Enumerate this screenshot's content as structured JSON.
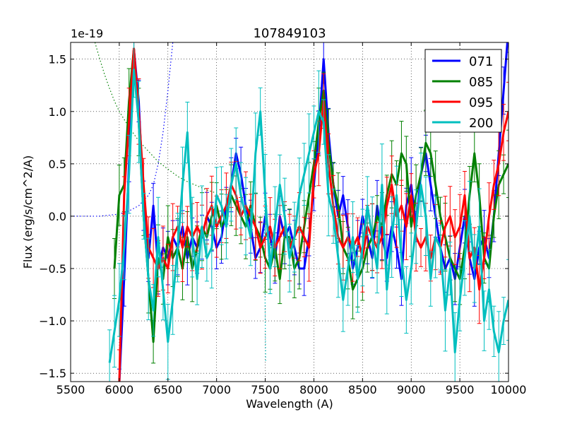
{
  "chart_data": {
    "type": "line",
    "title": "107849103",
    "xlabel": "Wavelength (A)",
    "ylabel": "Flux (erg/s/cm^2/A)",
    "offset_label": "1e-19",
    "xlim": [
      5500,
      10000
    ],
    "ylim": [
      -1.58,
      1.66
    ],
    "xticks": [
      5500,
      6000,
      6500,
      7000,
      7500,
      8000,
      8500,
      9000,
      9500,
      10000
    ],
    "yticks": [
      -1.5,
      -1.0,
      -0.5,
      0.0,
      0.5,
      1.0,
      1.5
    ],
    "xtick_labels": [
      "5500",
      "6000",
      "6500",
      "7000",
      "7500",
      "8000",
      "8500",
      "9000",
      "9500",
      "10000"
    ],
    "ytick_labels": [
      "−1.5",
      "−1.0",
      "−0.5",
      "0.0",
      "0.5",
      "1.0",
      "1.5"
    ],
    "grid": true,
    "legend_position": "top-right",
    "series": [
      {
        "name": "071",
        "color": "#0000ff",
        "x": [
          6000,
          6050,
          6100,
          6150,
          6200,
          6250,
          6300,
          6350,
          6400,
          6450,
          6500,
          6550,
          6600,
          6650,
          6700,
          6750,
          6800,
          6850,
          6900,
          6950,
          7000,
          7050,
          7100,
          7150,
          7200,
          7250,
          7300,
          7350,
          7400,
          7450,
          7500,
          7550,
          7600,
          7650,
          7700,
          7750,
          7800,
          7850,
          7900,
          7950,
          8000,
          8050,
          8100,
          8150,
          8200,
          8250,
          8300,
          8350,
          8400,
          8450,
          8500,
          8550,
          8600,
          8650,
          8700,
          8750,
          8800,
          8850,
          8900,
          8950,
          9000,
          9050,
          9100,
          9150,
          9200,
          9250,
          9300,
          9350,
          9400,
          9450,
          9500,
          9550,
          9600,
          9650,
          9700,
          9750,
          9800,
          9850,
          9900,
          9950,
          10000
        ],
        "y": [
          -1.6,
          -0.6,
          0.5,
          1.6,
          1.1,
          0.1,
          -0.4,
          0.1,
          -0.5,
          -0.3,
          -0.4,
          -0.2,
          -0.3,
          -0.1,
          -0.4,
          -0.2,
          -0.3,
          -0.2,
          0.0,
          -0.1,
          -0.3,
          -0.2,
          0.1,
          0.3,
          0.6,
          0.4,
          0.1,
          -0.1,
          -0.4,
          -0.3,
          0.0,
          -0.2,
          -0.4,
          0.0,
          -0.2,
          -0.1,
          -0.3,
          -0.5,
          -0.5,
          -0.2,
          0.3,
          0.8,
          1.5,
          0.8,
          0.3,
          0.0,
          0.2,
          -0.1,
          -0.5,
          -0.3,
          0.0,
          -0.2,
          -0.4,
          0.1,
          -0.2,
          -0.4,
          -0.1,
          -0.3,
          -0.6,
          0.1,
          0.3,
          -0.1,
          0.4,
          0.6,
          0.3,
          0.0,
          -0.3,
          -0.5,
          -0.4,
          -0.6,
          -0.3,
          0.0,
          -0.4,
          -0.6,
          -0.3,
          -0.2,
          -0.4,
          0.0,
          0.6,
          1.2,
          1.8
        ],
        "err": 0.2
      },
      {
        "name": "085",
        "color": "#008000",
        "x": [
          5950,
          6000,
          6050,
          6100,
          6150,
          6200,
          6250,
          6300,
          6350,
          6400,
          6450,
          6500,
          6550,
          6600,
          6650,
          6700,
          6750,
          6800,
          6850,
          6900,
          6950,
          7000,
          7050,
          7100,
          7150,
          7200,
          7250,
          7300,
          7350,
          7400,
          7450,
          7500,
          7550,
          7600,
          7650,
          7700,
          7750,
          7800,
          7850,
          7900,
          7950,
          8000,
          8050,
          8100,
          8150,
          8200,
          8250,
          8300,
          8350,
          8400,
          8450,
          8500,
          8550,
          8600,
          8650,
          8700,
          8750,
          8800,
          8850,
          8900,
          8950,
          9000,
          9050,
          9100,
          9150,
          9200,
          9250,
          9300,
          9350,
          9400,
          9450,
          9500,
          9550,
          9600,
          9650,
          9700,
          9750,
          9800,
          9850,
          9900,
          9950,
          10000
        ],
        "y": [
          -0.5,
          0.2,
          0.3,
          1.1,
          1.6,
          0.9,
          0.0,
          -0.6,
          -1.2,
          -0.4,
          -0.6,
          -0.2,
          -0.4,
          -0.3,
          -0.5,
          -0.2,
          -0.5,
          -0.3,
          -0.1,
          -0.2,
          0.0,
          0.1,
          -0.1,
          0.0,
          0.2,
          0.1,
          0.0,
          -0.1,
          0.1,
          -0.1,
          -0.2,
          -0.4,
          -0.5,
          -0.3,
          -0.6,
          -0.2,
          -0.2,
          -0.5,
          -0.4,
          -0.1,
          0.2,
          0.5,
          0.9,
          1.2,
          0.7,
          0.3,
          0.1,
          -0.3,
          -0.4,
          -0.7,
          -0.6,
          -0.5,
          -0.3,
          -0.2,
          0.0,
          -0.1,
          0.2,
          0.4,
          0.3,
          0.6,
          0.5,
          -0.1,
          0.2,
          0.4,
          0.7,
          0.6,
          0.3,
          0.0,
          -0.2,
          -0.4,
          -0.5,
          -0.6,
          -0.3,
          0.2,
          0.6,
          0.2,
          -0.4,
          -0.5,
          0.0,
          0.3,
          0.4,
          0.5
        ],
        "err": 0.25
      },
      {
        "name": "095",
        "color": "#ff0000",
        "x": [
          6000,
          6050,
          6100,
          6150,
          6200,
          6250,
          6300,
          6350,
          6400,
          6450,
          6500,
          6550,
          6600,
          6650,
          6700,
          6750,
          6800,
          6850,
          6900,
          6950,
          7000,
          7050,
          7100,
          7150,
          7200,
          7250,
          7300,
          7350,
          7400,
          7450,
          7500,
          7550,
          7600,
          7650,
          7700,
          7750,
          7800,
          7850,
          7900,
          7950,
          8000,
          8050,
          8100,
          8150,
          8200,
          8250,
          8300,
          8350,
          8400,
          8450,
          8500,
          8550,
          8600,
          8650,
          8700,
          8750,
          8800,
          8850,
          8900,
          8950,
          9000,
          9050,
          9100,
          9150,
          9200,
          9250,
          9300,
          9350,
          9400,
          9450,
          9500,
          9550,
          9600,
          9650,
          9700,
          9750,
          9800,
          9850,
          9900,
          9950,
          10000
        ],
        "y": [
          -1.6,
          0.2,
          0.9,
          1.6,
          1.0,
          0.3,
          -0.3,
          -0.4,
          -0.5,
          -0.4,
          -0.5,
          -0.2,
          -0.1,
          -0.3,
          -0.1,
          -0.2,
          -0.1,
          -0.2,
          0.0,
          0.1,
          -0.1,
          0.0,
          0.1,
          0.3,
          0.2,
          0.0,
          0.1,
          0.0,
          -0.1,
          -0.3,
          -0.2,
          -0.1,
          -0.3,
          -0.2,
          -0.1,
          -0.3,
          -0.2,
          -0.1,
          -0.2,
          -0.3,
          0.4,
          0.6,
          1.1,
          0.5,
          0.1,
          -0.2,
          -0.3,
          -0.2,
          -0.3,
          -0.2,
          -0.4,
          -0.1,
          -0.2,
          -0.3,
          -0.2,
          0.1,
          0.3,
          0.0,
          0.1,
          -0.1,
          0.2,
          -0.2,
          -0.3,
          -0.2,
          -0.4,
          -0.2,
          -0.3,
          -0.1,
          0.0,
          -0.2,
          -0.1,
          0.2,
          -0.4,
          -0.3,
          -0.7,
          -0.4,
          0.0,
          0.3,
          0.5,
          0.8,
          1.0
        ],
        "err": 0.25
      },
      {
        "name": "200",
        "color": "#00bfbf",
        "x": [
          5900,
          5950,
          6000,
          6050,
          6100,
          6150,
          6200,
          6250,
          6300,
          6350,
          6400,
          6450,
          6500,
          6550,
          6600,
          6650,
          6700,
          6750,
          6800,
          6850,
          6900,
          6950,
          7000,
          7050,
          7100,
          7150,
          7200,
          7250,
          7300,
          7350,
          7400,
          7450,
          7500,
          7550,
          7600,
          7650,
          7700,
          7750,
          7800,
          7850,
          7900,
          7950,
          8000,
          8050,
          8100,
          8150,
          8200,
          8250,
          8300,
          8350,
          8400,
          8450,
          8500,
          8550,
          8600,
          8650,
          8700,
          8750,
          8800,
          8850,
          8900,
          8950,
          9000,
          9050,
          9100,
          9150,
          9200,
          9250,
          9300,
          9350,
          9400,
          9450,
          9500,
          9550,
          9600,
          9650,
          9700,
          9750,
          9800,
          9850,
          9900,
          9950,
          10000
        ],
        "y": [
          -1.4,
          -1.1,
          -0.8,
          -0.3,
          0.4,
          1.4,
          0.9,
          0.0,
          -0.6,
          -0.9,
          -0.2,
          -0.7,
          -1.2,
          -0.8,
          -0.3,
          0.3,
          0.8,
          -0.2,
          -0.6,
          -0.1,
          -0.4,
          -0.3,
          0.2,
          0.1,
          -0.1,
          0.3,
          0.5,
          0.2,
          0.0,
          -0.2,
          0.6,
          1.0,
          0.2,
          -0.5,
          -0.1,
          0.3,
          0.0,
          -0.4,
          -0.2,
          0.2,
          0.4,
          0.6,
          0.8,
          1.0,
          0.9,
          0.2,
          0.0,
          -0.4,
          -0.8,
          -0.5,
          -0.2,
          -0.6,
          -0.3,
          0.1,
          -0.2,
          -0.5,
          0.3,
          -0.7,
          -0.2,
          0.2,
          -0.4,
          -0.8,
          -0.5,
          -0.1,
          0.3,
          0.0,
          -0.6,
          -0.2,
          -0.3,
          -0.9,
          -0.5,
          -1.3,
          -0.8,
          -0.4,
          0.0,
          -0.5,
          -0.1,
          -1.0,
          -0.7,
          -1.1,
          -1.3,
          -1.0,
          -0.8
        ],
        "err": 0.3
      }
    ],
    "model_lines": [
      {
        "name": "model-green-dotted",
        "color": "#008000",
        "x": [
          5750,
          5800,
          5850,
          5900,
          5950,
          6000,
          6100,
          6200,
          6300,
          6400,
          6500,
          6600,
          6700,
          6800,
          6900,
          7000
        ],
        "y": [
          1.66,
          1.5,
          1.35,
          1.22,
          1.1,
          1.0,
          0.85,
          0.72,
          0.62,
          0.52,
          0.45,
          0.38,
          0.33,
          0.29,
          0.25,
          0.22
        ]
      },
      {
        "name": "model-blue-dotted",
        "color": "#0000ff",
        "x": [
          5500,
          5800,
          6000,
          6100,
          6200,
          6300,
          6350,
          6400,
          6450,
          6500,
          6550
        ],
        "y": [
          0.0,
          0.0,
          0.02,
          0.05,
          0.1,
          0.2,
          0.3,
          0.5,
          0.8,
          1.2,
          1.66
        ]
      },
      {
        "name": "model-cyan-dotted",
        "color": "#00bfbf",
        "x": [
          7490,
          7495,
          7500,
          7505
        ],
        "y": [
          0.3,
          -0.4,
          -1.0,
          -1.4
        ]
      }
    ]
  }
}
